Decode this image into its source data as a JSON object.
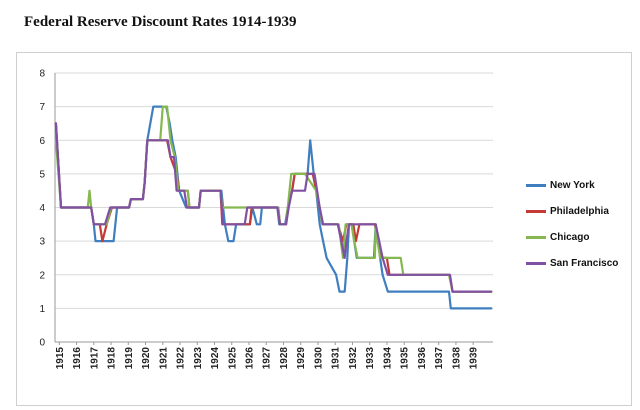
{
  "page": {
    "title": "Federal Reserve Discount Rates 1914-1939"
  },
  "chart_data": {
    "type": "line",
    "title": "Federal Reserve Discount Rates 1914-1939",
    "xlabel": "",
    "ylabel": "",
    "xlim": [
      1914.8,
      1940.2
    ],
    "ylim": [
      0,
      8
    ],
    "yticks": [
      "0",
      "1",
      "2",
      "3",
      "4",
      "5",
      "6",
      "7",
      "8"
    ],
    "xticks": [
      "1915",
      "1916",
      "1917",
      "1918",
      "1919",
      "1920",
      "1921",
      "1922",
      "1923",
      "1924",
      "1925",
      "1926",
      "1927",
      "1928",
      "1929",
      "1930",
      "1931",
      "1932",
      "1933",
      "1934",
      "1935",
      "1936",
      "1937",
      "1938",
      "1939"
    ],
    "grid": "horizontal",
    "legend_position": "right",
    "series": [
      {
        "name": "New York",
        "color": "#3f7fbf",
        "points": [
          [
            1914.85,
            6.5
          ],
          [
            1915.15,
            4
          ],
          [
            1916.9,
            4
          ],
          [
            1917.05,
            3.5
          ],
          [
            1917.15,
            3
          ],
          [
            1918.2,
            3
          ],
          [
            1918.4,
            4
          ],
          [
            1919.1,
            4
          ],
          [
            1919.2,
            4.25
          ],
          [
            1919.9,
            4.25
          ],
          [
            1920.0,
            4.75
          ],
          [
            1920.15,
            6
          ],
          [
            1920.5,
            7
          ],
          [
            1921.25,
            7
          ],
          [
            1921.45,
            6.5
          ],
          [
            1921.6,
            6
          ],
          [
            1921.8,
            5.5
          ],
          [
            1922.0,
            4.5
          ],
          [
            1922.4,
            4
          ],
          [
            1923.15,
            4
          ],
          [
            1923.25,
            4.5
          ],
          [
            1924.45,
            4.5
          ],
          [
            1924.55,
            4
          ],
          [
            1924.65,
            3.5
          ],
          [
            1924.85,
            3
          ],
          [
            1925.15,
            3
          ],
          [
            1925.3,
            3.5
          ],
          [
            1926.1,
            3.5
          ],
          [
            1926.25,
            4
          ],
          [
            1926.5,
            3.5
          ],
          [
            1926.7,
            3.5
          ],
          [
            1926.8,
            4
          ],
          [
            1927.7,
            4
          ],
          [
            1927.8,
            3.5
          ],
          [
            1928.15,
            3.5
          ],
          [
            1928.3,
            4
          ],
          [
            1928.55,
            4.5
          ],
          [
            1928.7,
            5
          ],
          [
            1929.45,
            5
          ],
          [
            1929.6,
            6
          ],
          [
            1929.8,
            5
          ],
          [
            1929.95,
            4.5
          ],
          [
            1930.15,
            3.5
          ],
          [
            1930.35,
            3
          ],
          [
            1930.55,
            2.5
          ],
          [
            1931.1,
            2
          ],
          [
            1931.3,
            1.5
          ],
          [
            1931.6,
            1.5
          ],
          [
            1931.75,
            2.5
          ],
          [
            1931.85,
            3.5
          ],
          [
            1932.0,
            3.5
          ],
          [
            1932.15,
            3
          ],
          [
            1932.3,
            2.5
          ],
          [
            1932.5,
            2.5
          ],
          [
            1933.3,
            2.5
          ],
          [
            1933.4,
            3.5
          ],
          [
            1933.55,
            3
          ],
          [
            1933.65,
            2.5
          ],
          [
            1933.8,
            2
          ],
          [
            1934.1,
            1.5
          ],
          [
            1937.65,
            1.5
          ],
          [
            1937.75,
            1
          ],
          [
            1940.1,
            1
          ]
        ]
      },
      {
        "name": "Philadelphia",
        "color": "#c43a34",
        "points": [
          [
            1914.85,
            6.5
          ],
          [
            1915.15,
            4
          ],
          [
            1916.9,
            4
          ],
          [
            1917.05,
            3.5
          ],
          [
            1917.4,
            3.5
          ],
          [
            1917.55,
            3
          ],
          [
            1917.8,
            3.5
          ],
          [
            1918.1,
            4
          ],
          [
            1919.1,
            4
          ],
          [
            1919.2,
            4.25
          ],
          [
            1919.9,
            4.25
          ],
          [
            1920.0,
            4.75
          ],
          [
            1920.15,
            6
          ],
          [
            1921.0,
            6
          ],
          [
            1921.3,
            6
          ],
          [
            1921.5,
            5.5
          ],
          [
            1921.85,
            5
          ],
          [
            1922.0,
            4.5
          ],
          [
            1922.5,
            4.5
          ],
          [
            1922.6,
            4
          ],
          [
            1923.15,
            4
          ],
          [
            1923.25,
            4.5
          ],
          [
            1924.4,
            4.5
          ],
          [
            1924.5,
            3.5
          ],
          [
            1926.1,
            3.5
          ],
          [
            1926.2,
            4
          ],
          [
            1927.75,
            4
          ],
          [
            1927.85,
            3.5
          ],
          [
            1928.2,
            3.5
          ],
          [
            1928.3,
            4
          ],
          [
            1928.55,
            4.5
          ],
          [
            1928.7,
            5
          ],
          [
            1929.75,
            5
          ],
          [
            1929.95,
            4.5
          ],
          [
            1930.15,
            4
          ],
          [
            1930.3,
            3.5
          ],
          [
            1931.2,
            3.5
          ],
          [
            1931.5,
            3
          ],
          [
            1931.7,
            3.5
          ],
          [
            1932.1,
            3.5
          ],
          [
            1932.25,
            3
          ],
          [
            1932.45,
            3.5
          ],
          [
            1933.35,
            3.5
          ],
          [
            1933.5,
            3
          ],
          [
            1933.75,
            2.5
          ],
          [
            1934.05,
            2.5
          ],
          [
            1934.2,
            2
          ],
          [
            1937.7,
            2
          ],
          [
            1937.85,
            1.5
          ],
          [
            1940.1,
            1.5
          ]
        ]
      },
      {
        "name": "Chicago",
        "color": "#86b850",
        "points": [
          [
            1914.85,
            6
          ],
          [
            1915.15,
            4
          ],
          [
            1916.7,
            4
          ],
          [
            1916.8,
            4.5
          ],
          [
            1916.9,
            4
          ],
          [
            1917.05,
            3.5
          ],
          [
            1917.4,
            3.5
          ],
          [
            1917.8,
            3.5
          ],
          [
            1918.05,
            4
          ],
          [
            1919.1,
            4
          ],
          [
            1919.2,
            4.25
          ],
          [
            1919.9,
            4.25
          ],
          [
            1920.0,
            4.75
          ],
          [
            1920.15,
            6
          ],
          [
            1920.9,
            6
          ],
          [
            1921.05,
            7
          ],
          [
            1921.3,
            7
          ],
          [
            1921.5,
            6
          ],
          [
            1921.75,
            5.5
          ],
          [
            1921.95,
            4.5
          ],
          [
            1922.5,
            4.5
          ],
          [
            1922.6,
            4
          ],
          [
            1923.15,
            4
          ],
          [
            1923.25,
            4.5
          ],
          [
            1924.4,
            4.5
          ],
          [
            1924.5,
            4
          ],
          [
            1926.1,
            4
          ],
          [
            1926.2,
            4
          ],
          [
            1927.75,
            4
          ],
          [
            1927.85,
            3.5
          ],
          [
            1928.2,
            3.5
          ],
          [
            1928.3,
            4
          ],
          [
            1928.5,
            5
          ],
          [
            1929.15,
            5
          ],
          [
            1929.3,
            5
          ],
          [
            1929.95,
            4.5
          ],
          [
            1930.15,
            4
          ],
          [
            1930.3,
            3.5
          ],
          [
            1931.25,
            3.5
          ],
          [
            1931.5,
            2.5
          ],
          [
            1931.65,
            3.5
          ],
          [
            1932.0,
            3.5
          ],
          [
            1932.15,
            3
          ],
          [
            1932.35,
            2.5
          ],
          [
            1933.35,
            2.5
          ],
          [
            1933.4,
            3.5
          ],
          [
            1933.5,
            3
          ],
          [
            1933.65,
            2.5
          ],
          [
            1934.85,
            2.5
          ],
          [
            1935.0,
            2
          ],
          [
            1937.65,
            2
          ],
          [
            1937.85,
            1.5
          ],
          [
            1940.1,
            1.5
          ]
        ]
      },
      {
        "name": "San Francisco",
        "color": "#8051a3",
        "points": [
          [
            1914.85,
            6.5
          ],
          [
            1915.15,
            4
          ],
          [
            1916.9,
            4
          ],
          [
            1917.05,
            3.5
          ],
          [
            1917.6,
            3.5
          ],
          [
            1917.7,
            3.5
          ],
          [
            1918.0,
            4
          ],
          [
            1919.1,
            4
          ],
          [
            1919.2,
            4.25
          ],
          [
            1919.9,
            4.25
          ],
          [
            1920.0,
            4.75
          ],
          [
            1920.15,
            6
          ],
          [
            1921.35,
            6
          ],
          [
            1921.5,
            5.5
          ],
          [
            1921.7,
            5.5
          ],
          [
            1921.85,
            4.5
          ],
          [
            1922.3,
            4.5
          ],
          [
            1922.45,
            4
          ],
          [
            1923.15,
            4
          ],
          [
            1923.25,
            4.5
          ],
          [
            1924.4,
            4.5
          ],
          [
            1924.55,
            3.5
          ],
          [
            1925.8,
            3.5
          ],
          [
            1925.95,
            4
          ],
          [
            1927.7,
            4
          ],
          [
            1927.85,
            3.5
          ],
          [
            1928.2,
            3.5
          ],
          [
            1928.35,
            4
          ],
          [
            1928.55,
            4.5
          ],
          [
            1929.3,
            4.5
          ],
          [
            1929.45,
            5
          ],
          [
            1929.85,
            5
          ],
          [
            1930.0,
            4.5
          ],
          [
            1930.15,
            4
          ],
          [
            1930.35,
            3.5
          ],
          [
            1931.2,
            3.5
          ],
          [
            1931.4,
            3
          ],
          [
            1931.6,
            2.5
          ],
          [
            1931.7,
            3
          ],
          [
            1931.85,
            3.5
          ],
          [
            1933.4,
            3.5
          ],
          [
            1933.6,
            3
          ],
          [
            1933.8,
            2.5
          ],
          [
            1934.1,
            2
          ],
          [
            1937.7,
            2
          ],
          [
            1937.85,
            1.5
          ],
          [
            1940.1,
            1.5
          ]
        ]
      }
    ]
  }
}
